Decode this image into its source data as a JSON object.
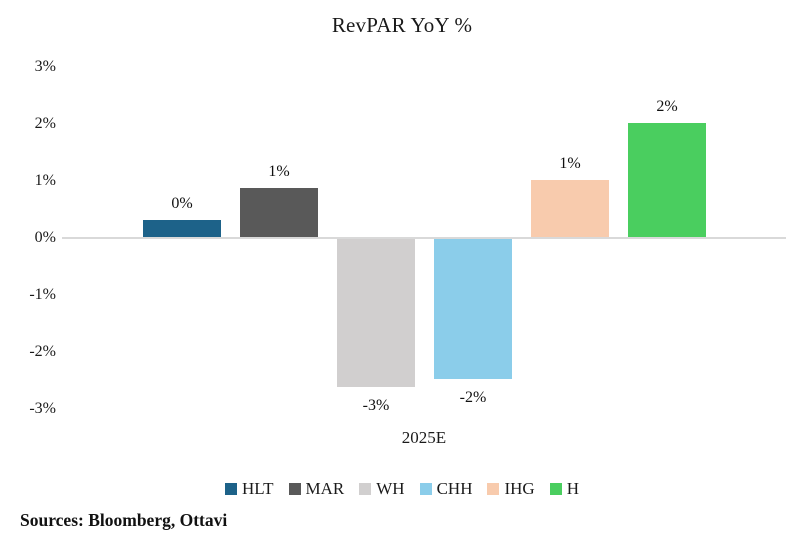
{
  "title": "RevPAR YoY %",
  "source_note": "Sources: Bloomberg, Ottavi",
  "chart_data": {
    "type": "bar",
    "title": "RevPAR YoY %",
    "categories": [
      "2025E"
    ],
    "series": [
      {
        "name": "HLT",
        "value": 0.3,
        "label": "0%",
        "color": "#1d6289"
      },
      {
        "name": "MAR",
        "value": 0.86,
        "label": "1%",
        "color": "#595959"
      },
      {
        "name": "WH",
        "value": -2.6,
        "label": "-3%",
        "color": "#d1cfcf"
      },
      {
        "name": "CHH",
        "value": -2.45,
        "label": "-2%",
        "color": "#8bcdea"
      },
      {
        "name": "IHG",
        "value": 1.0,
        "label": "1%",
        "color": "#f8cbad"
      },
      {
        "name": "H",
        "value": 2.0,
        "label": "2%",
        "color": "#4ace5f"
      }
    ],
    "xlabel": "2025E",
    "ylabel": "",
    "ylim": [
      -3,
      3
    ],
    "yticks": [
      "3%",
      "2%",
      "1%",
      "0%",
      "-1%",
      "-2%",
      "-3%"
    ],
    "grid": false,
    "legend_position": "bottom",
    "axis_line_color": "#d9d9d9"
  }
}
